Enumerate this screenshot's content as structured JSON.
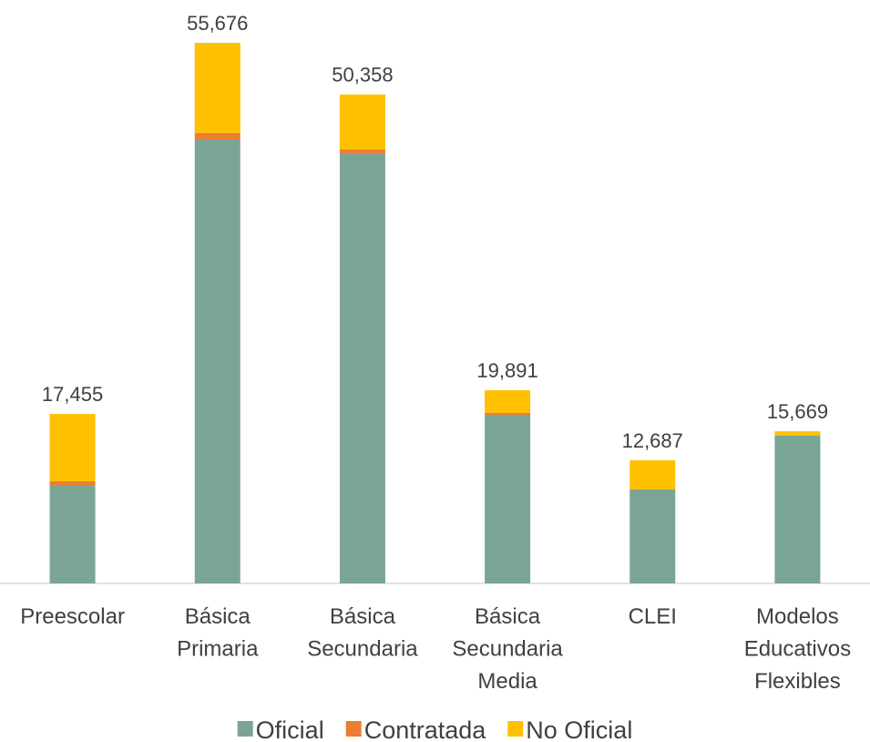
{
  "chart_data": {
    "type": "stacked-bar",
    "categories": [
      "Preescolar",
      "Básica\nPrimaria",
      "Básica\nSecundaria",
      "Básica\nSecundaria\nMedia",
      "CLEI",
      "Modelos\nEducativos\nFlexibles"
    ],
    "series": [
      {
        "name": "Oficial",
        "color": "#7aa594",
        "values": [
          10050,
          45730,
          44230,
          17370,
          9670,
          15210
        ]
      },
      {
        "name": "Contratada",
        "color": "#ed7d31",
        "values": [
          470,
          660,
          470,
          190,
          0,
          0
        ]
      },
      {
        "name": "No Oficial",
        "color": "#ffc000",
        "values": [
          6935,
          9286,
          5658,
          2331,
          3017,
          459
        ]
      }
    ],
    "totals": [
      17455,
      55676,
      50358,
      19891,
      12687,
      15669
    ],
    "totals_labels": [
      "17,455",
      "55,676",
      "50,358",
      "19,891",
      "12,687",
      "15,669"
    ],
    "legend": "bottom"
  }
}
